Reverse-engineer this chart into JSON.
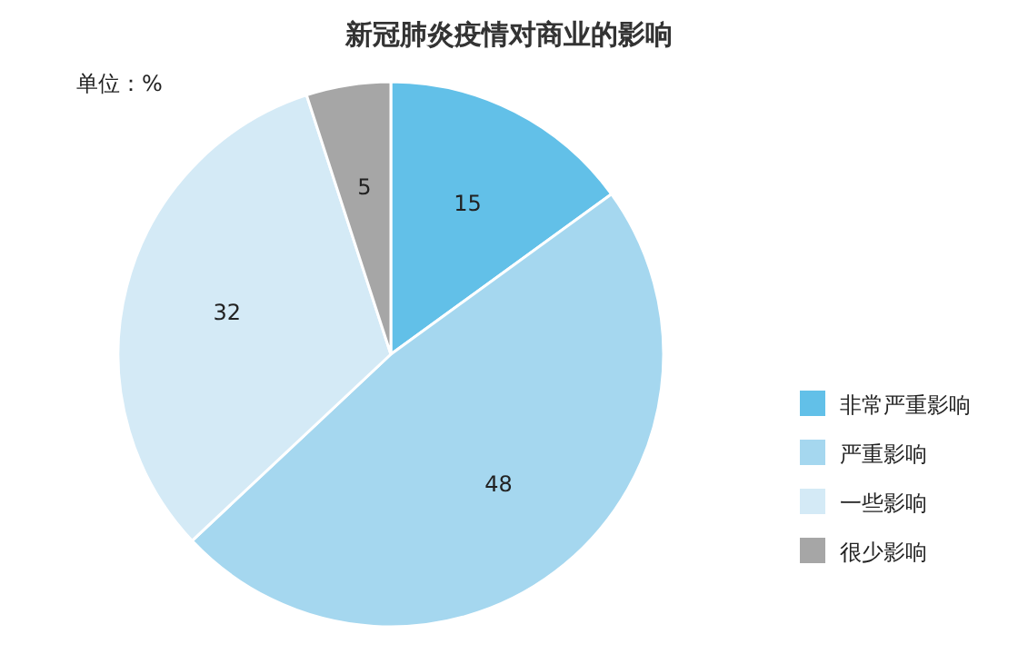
{
  "chart_data": {
    "type": "pie",
    "title": "新冠肺炎疫情对商业的影响",
    "categories": [
      "非常严重影响",
      "严重影响",
      "一些影响",
      "很少影响"
    ],
    "values": [
      15,
      48,
      32,
      5
    ],
    "colors": [
      "#62c0e8",
      "#a5d7ef",
      "#d4eaf6",
      "#a6a6a6"
    ],
    "data_labels": true,
    "legend": "right",
    "annotations": [
      "单位：%"
    ]
  }
}
